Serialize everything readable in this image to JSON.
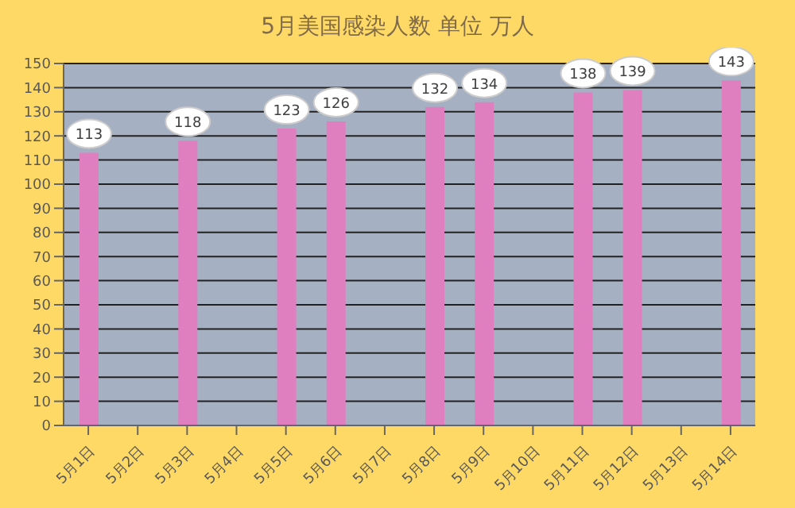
{
  "chart_data": {
    "type": "bar",
    "title": "5月美国感染人数 单位 万人",
    "categories": [
      "5月1日",
      "5月2日",
      "5月3日",
      "5月4日",
      "5月5日",
      "5月6日",
      "5月7日",
      "5月8日",
      "5月9日",
      "5月10日",
      "5月11日",
      "5月12日",
      "5月13日",
      "5月14日"
    ],
    "values": [
      113,
      null,
      118,
      null,
      123,
      126,
      null,
      132,
      134,
      null,
      138,
      139,
      null,
      143
    ],
    "color": "#e07fbf",
    "ylim": [
      0,
      150
    ],
    "yticks": [
      0,
      10,
      20,
      30,
      40,
      50,
      60,
      70,
      80,
      90,
      100,
      110,
      120,
      130,
      140,
      150
    ],
    "grid": "y",
    "data_labels": true
  }
}
